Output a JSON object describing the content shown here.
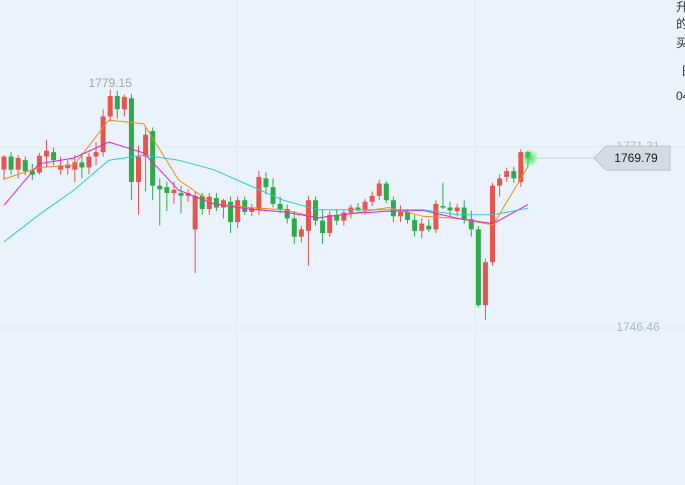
{
  "chart_data": {
    "type": "candlestick",
    "ylim": [
      1724.91,
      1791.49
    ],
    "yticks": [
      1771.31,
      1746.46
    ],
    "grid": true,
    "up_color": "#e8554e",
    "down_color": "#2eaa4a",
    "high_label": 1779.15,
    "last_price": 1769.79,
    "candles": [
      [
        1768.2,
        1770.2,
        1766.8,
        1770.0
      ],
      [
        1770.0,
        1770.6,
        1767.5,
        1768.2
      ],
      [
        1768.2,
        1770.2,
        1767.0,
        1769.8
      ],
      [
        1769.5,
        1770.0,
        1767.4,
        1768.0
      ],
      [
        1768.0,
        1769.0,
        1766.8,
        1767.5
      ],
      [
        1767.8,
        1770.5,
        1767.5,
        1770.1
      ],
      [
        1770.0,
        1772.3,
        1768.5,
        1770.8
      ],
      [
        1770.6,
        1771.2,
        1768.8,
        1769.5
      ],
      [
        1768.2,
        1770.0,
        1767.5,
        1768.8
      ],
      [
        1768.4,
        1769.5,
        1767.5,
        1768.9
      ],
      [
        1768.2,
        1770.2,
        1766.5,
        1769.2
      ],
      [
        1769.2,
        1770.5,
        1767.0,
        1768.5
      ],
      [
        1768.5,
        1770.5,
        1767.6,
        1770.0
      ],
      [
        1770.0,
        1772.0,
        1768.8,
        1770.6
      ],
      [
        1770.6,
        1776.5,
        1770.0,
        1775.5
      ],
      [
        1775.5,
        1779.15,
        1774.8,
        1778.3
      ],
      [
        1778.3,
        1779.0,
        1775.2,
        1776.5
      ],
      [
        1776.5,
        1778.5,
        1775.5,
        1778.2
      ],
      [
        1778.0,
        1778.6,
        1764.0,
        1766.5
      ],
      [
        1766.5,
        1771.5,
        1762.0,
        1770.0
      ],
      [
        1770.0,
        1774.0,
        1765.2,
        1773.0
      ],
      [
        1773.5,
        1774.0,
        1764.0,
        1766.0
      ],
      [
        1766.0,
        1767.0,
        1760.5,
        1765.5
      ],
      [
        1765.8,
        1766.5,
        1762.5,
        1765.0
      ],
      [
        1765.0,
        1766.6,
        1763.5,
        1765.4
      ],
      [
        1765.0,
        1766.0,
        1762.2,
        1764.6
      ],
      [
        1764.6,
        1765.5,
        1763.8,
        1765.0
      ],
      [
        1760.0,
        1765.2,
        1754.0,
        1764.6
      ],
      [
        1764.6,
        1765.0,
        1762.0,
        1762.8
      ],
      [
        1762.8,
        1765.0,
        1762.0,
        1764.5
      ],
      [
        1764.3,
        1765.0,
        1762.5,
        1763.0
      ],
      [
        1763.0,
        1764.2,
        1761.5,
        1764.0
      ],
      [
        1763.8,
        1764.5,
        1759.5,
        1761.0
      ],
      [
        1761.0,
        1764.5,
        1760.2,
        1764.0
      ],
      [
        1764.0,
        1764.5,
        1762.0,
        1762.4
      ],
      [
        1762.4,
        1763.5,
        1761.8,
        1763.0
      ],
      [
        1762.7,
        1768.0,
        1762.0,
        1767.2
      ],
      [
        1767.0,
        1767.8,
        1764.8,
        1765.8
      ],
      [
        1765.8,
        1767.0,
        1763.0,
        1763.5
      ],
      [
        1763.5,
        1764.5,
        1762.2,
        1762.8
      ],
      [
        1762.8,
        1763.4,
        1760.8,
        1761.5
      ],
      [
        1761.5,
        1762.5,
        1758.0,
        1759.0
      ],
      [
        1759.0,
        1760.5,
        1758.2,
        1760.0
      ],
      [
        1759.8,
        1764.6,
        1755.0,
        1764.0
      ],
      [
        1764.0,
        1764.5,
        1760.5,
        1761.2
      ],
      [
        1761.2,
        1762.8,
        1758.0,
        1759.5
      ],
      [
        1759.5,
        1762.5,
        1759.0,
        1762.0
      ],
      [
        1762.0,
        1762.8,
        1760.6,
        1761.2
      ],
      [
        1761.2,
        1762.6,
        1760.5,
        1762.3
      ],
      [
        1762.3,
        1763.4,
        1761.5,
        1763.0
      ],
      [
        1763.0,
        1763.6,
        1762.4,
        1762.6
      ],
      [
        1762.6,
        1764.2,
        1762.0,
        1763.8
      ],
      [
        1763.8,
        1765.2,
        1763.2,
        1764.6
      ],
      [
        1764.6,
        1766.8,
        1764.0,
        1766.3
      ],
      [
        1766.3,
        1766.6,
        1763.6,
        1764.0
      ],
      [
        1764.0,
        1764.5,
        1761.0,
        1761.8
      ],
      [
        1761.8,
        1763.3,
        1761.0,
        1762.4
      ],
      [
        1762.4,
        1762.8,
        1760.8,
        1761.3
      ],
      [
        1761.3,
        1762.0,
        1759.0,
        1759.8
      ],
      [
        1759.8,
        1761.5,
        1758.8,
        1760.8
      ],
      [
        1760.5,
        1761.4,
        1759.6,
        1760.0
      ],
      [
        1760.0,
        1764.0,
        1759.5,
        1763.5
      ],
      [
        1763.2,
        1766.4,
        1762.8,
        1763.0
      ],
      [
        1763.0,
        1763.8,
        1761.8,
        1762.6
      ],
      [
        1762.5,
        1763.5,
        1761.8,
        1763.0
      ],
      [
        1763.0,
        1764.0,
        1760.8,
        1761.4
      ],
      [
        1761.4,
        1762.6,
        1759.0,
        1760.0
      ],
      [
        1760.0,
        1760.5,
        1749.3,
        1749.6
      ],
      [
        1749.6,
        1756.0,
        1747.6,
        1755.5
      ],
      [
        1755.5,
        1766.4,
        1755.0,
        1766.0
      ],
      [
        1766.0,
        1767.6,
        1764.5,
        1767.0
      ],
      [
        1767.2,
        1768.5,
        1766.5,
        1768.0
      ],
      [
        1768.0,
        1768.6,
        1766.4,
        1767.0
      ],
      [
        1766.5,
        1771.0,
        1765.8,
        1770.6
      ],
      [
        1770.6,
        1770.8,
        1768.5,
        1769.79
      ]
    ],
    "series": [
      {
        "color": "#f08a1c",
        "values": [
          1766.9,
          1768.5,
          1768.8,
          1775.0,
          1774.5,
          1766.8,
          1763.5,
          1763.0,
          1762.7,
          1761.6,
          1762.2,
          1763.0,
          1761.8,
          1761.5,
          1760.6,
          1768.6
        ]
      },
      {
        "color": "#e61fd0",
        "values": [
          1763.3,
          1769.0,
          1769.8,
          1772.0,
          1770.5,
          1765.4,
          1763.5,
          1762.8,
          1762.4,
          1761.6,
          1762.2,
          1762.5,
          1762.6,
          1761.5,
          1760.8,
          1763.4
        ]
      },
      {
        "color": "#27cbd6",
        "values": [
          1758.3,
          1762.0,
          1765.4,
          1769.5,
          1770.2,
          1769.5,
          1768.2,
          1766.1,
          1764.0,
          1762.7,
          1762.7,
          1762.7,
          1762.7,
          1762.0,
          1762.0,
          1762.9
        ]
      }
    ]
  },
  "sidebar": [
    "升",
    "的",
    "买",
    "日",
    "04"
  ]
}
